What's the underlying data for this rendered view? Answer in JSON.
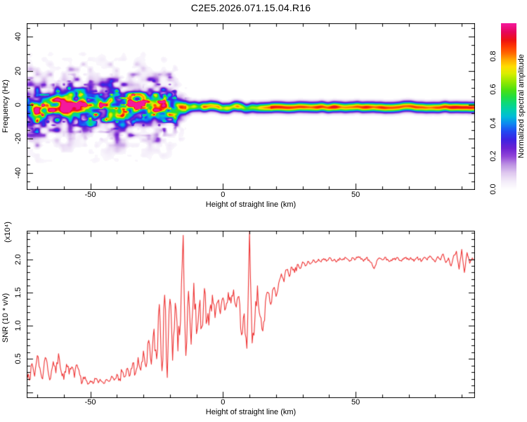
{
  "title": "C2E5.2026.071.15.04.R16",
  "colors": {
    "background": "#ffffff",
    "axis": "#000000",
    "snr_trace": "#ee3333"
  },
  "top_panel": {
    "ylabel": "Frequency (Hz)",
    "xlabel": "Height of straight line (km)",
    "x_range": [
      -74,
      95
    ],
    "y_range": [
      -50,
      48
    ],
    "x_tick_values": [
      -50,
      0,
      50
    ],
    "x_tick_labels": [
      "-50",
      "0",
      "50"
    ],
    "x_minor_step": 10,
    "y_tick_values": [
      -40,
      -20,
      0,
      20,
      40
    ],
    "y_tick_labels": [
      "-40",
      "-20",
      "0",
      "20",
      "40"
    ],
    "y_minor_step": 5,
    "y_major_step": 20
  },
  "colorbar": {
    "label": "Normalized spectral amplitude",
    "tick_values": [
      0.0,
      0.2,
      0.4,
      0.6,
      0.8
    ],
    "tick_labels": [
      "0.0",
      "0.2",
      "0.4",
      "0.6",
      "0.8"
    ],
    "range": [
      0,
      1
    ],
    "stops": [
      [
        0.0,
        "#ffffff"
      ],
      [
        0.05,
        "#f3ecf9"
      ],
      [
        0.1,
        "#dfc8ef"
      ],
      [
        0.15,
        "#bd93e3"
      ],
      [
        0.2,
        "#9246d8"
      ],
      [
        0.25,
        "#6b22d3"
      ],
      [
        0.3,
        "#3e22e2"
      ],
      [
        0.35,
        "#2248f2"
      ],
      [
        0.4,
        "#0b8cf0"
      ],
      [
        0.44,
        "#00bcd8"
      ],
      [
        0.48,
        "#00cfae"
      ],
      [
        0.52,
        "#0cd97a"
      ],
      [
        0.56,
        "#22dd3f"
      ],
      [
        0.6,
        "#4ce011"
      ],
      [
        0.65,
        "#96e800"
      ],
      [
        0.7,
        "#dcee00"
      ],
      [
        0.74,
        "#fede00"
      ],
      [
        0.78,
        "#ffac00"
      ],
      [
        0.82,
        "#ff6a00"
      ],
      [
        0.86,
        "#ff3a00"
      ],
      [
        0.9,
        "#ee1111"
      ],
      [
        0.95,
        "#e6065c"
      ],
      [
        1.0,
        "#f5199b"
      ]
    ]
  },
  "bottom_panel": {
    "ylabel": "SNR (10 * v/v)",
    "y_scale_note": "(x10⁴)",
    "xlabel": "Height of straight line (km)",
    "x_range": [
      -74,
      95
    ],
    "y_range": [
      -0.09,
      2.43
    ],
    "x_tick_values": [
      -50,
      0,
      50
    ],
    "x_tick_labels": [
      "-50",
      "0",
      "50"
    ],
    "x_minor_step": 10,
    "y_tick_values": [
      0.5,
      1.0,
      1.5,
      2.0
    ],
    "y_tick_labels": [
      "0.5",
      "1.0",
      "1.5",
      "2.0"
    ],
    "y_minor_step": 0.1,
    "y_major_step": 0.5
  },
  "chart_data": [
    {
      "type": "heatmap",
      "title": "Doppler spectrogram",
      "xlabel": "Height of straight line (km)",
      "ylabel": "Frequency (Hz)",
      "x_range": [
        -74,
        95
      ],
      "y_range": [
        -50,
        48
      ],
      "colorbar_label": "Normalized spectral amplitude",
      "color_range": [
        0,
        1
      ],
      "description": "Narrow spectral ridge centered near -1.5 Hz across all heights; below about -15 km the echo broadens into a patchy noisy band (purple haze, blue/green blobs, rare orange specks) spanning roughly +/-12 Hz; above -14 km it collapses to a thin saturated red line with green-yellow sheath, slightly wavy between -12 and +17 km, smooth and continuous to 95 km",
      "synth": {
        "seed": 42,
        "center_freq": -1.5,
        "wiggle_amp_left": 2.6,
        "wiggle_amp_right": 0.7,
        "mid_wobble": 1.0,
        "sigma_left": 4.6,
        "sigma_right": 1.9,
        "transition_km": [
          -21,
          -11
        ],
        "right_intensity_base": 0.78,
        "right_intensity_var": 0.16,
        "left_intensity_base": 0.18,
        "left_intensity_gain": 1.05,
        "haze_strength": 0.6,
        "speck_threshold": 0.66
      }
    },
    {
      "type": "line",
      "series_name": "SNR",
      "xlabel": "Height of straight line (km)",
      "ylabel": "SNR (10 * v/v) (x10^4)",
      "x_range": [
        -74,
        95
      ],
      "y_range": [
        -0.09,
        2.43
      ],
      "x_start": -74,
      "x_step": 1,
      "values": [
        0.32,
        0.18,
        0.43,
        0.24,
        0.55,
        0.36,
        0.2,
        0.52,
        0.33,
        0.21,
        0.46,
        0.29,
        0.58,
        0.31,
        0.19,
        0.42,
        0.27,
        0.38,
        0.22,
        0.41,
        0.26,
        0.15,
        0.23,
        0.12,
        0.17,
        0.13,
        0.2,
        0.14,
        0.17,
        0.13,
        0.19,
        0.16,
        0.24,
        0.18,
        0.27,
        0.2,
        0.31,
        0.23,
        0.36,
        0.26,
        0.44,
        0.28,
        0.52,
        0.33,
        0.62,
        0.38,
        0.78,
        0.42,
        0.95,
        0.5,
        1.32,
        0.32,
        1.46,
        0.22,
        1.4,
        0.48,
        1.34,
        0.62,
        1.08,
        2.36,
        0.55,
        1.52,
        0.72,
        1.64,
        0.88,
        1.28,
        0.98,
        1.56,
        1.08,
        1.24,
        1.46,
        1.12,
        1.36,
        1.18,
        1.42,
        1.26,
        1.5,
        1.34,
        1.54,
        1.28,
        1.44,
        0.86,
        1.18,
        0.66,
        2.42,
        0.74,
        1.08,
        1.6,
        1.14,
        0.92,
        1.36,
        1.5,
        1.32,
        1.56,
        1.44,
        1.64,
        1.78,
        1.66,
        1.84,
        1.74,
        1.88,
        1.8,
        1.92,
        1.86,
        1.96,
        1.9,
        1.97,
        1.93,
        1.99,
        1.95,
        2.0,
        1.96,
        2.01,
        1.97,
        2.02,
        1.98,
        2.0,
        1.97,
        2.02,
        1.99,
        2.03,
        2.0,
        1.98,
        2.02,
        2.0,
        2.04,
        2.0,
        1.97,
        2.02,
        1.99,
        1.95,
        1.86,
        1.98,
        2.02,
        1.99,
        2.03,
        2.0,
        1.97,
        2.01,
        1.99,
        2.02,
        1.98,
        2.0,
        2.03,
        1.99,
        2.01,
        1.97,
        2.02,
        2.0,
        1.98,
        2.03,
        1.99,
        2.05,
        2.0,
        1.96,
        2.04,
        1.99,
        2.08,
        1.95,
        2.02,
        1.9,
        2.06,
        2.12,
        1.85,
        2.15,
        1.8,
        2.1,
        1.94,
        2.02,
        2.0
      ],
      "jitter": {
        "seed": 11,
        "sub_points": 2,
        "amp_regions": [
          [
            -74,
            -52,
            0.07
          ],
          [
            -52,
            -40,
            0.035
          ],
          [
            -40,
            -26,
            0.09
          ],
          [
            -26,
            -4,
            0.22
          ],
          [
            -4,
            6,
            0.09
          ],
          [
            6,
            16,
            0.15
          ],
          [
            16,
            30,
            0.06
          ],
          [
            30,
            95,
            0.022
          ]
        ]
      }
    }
  ]
}
